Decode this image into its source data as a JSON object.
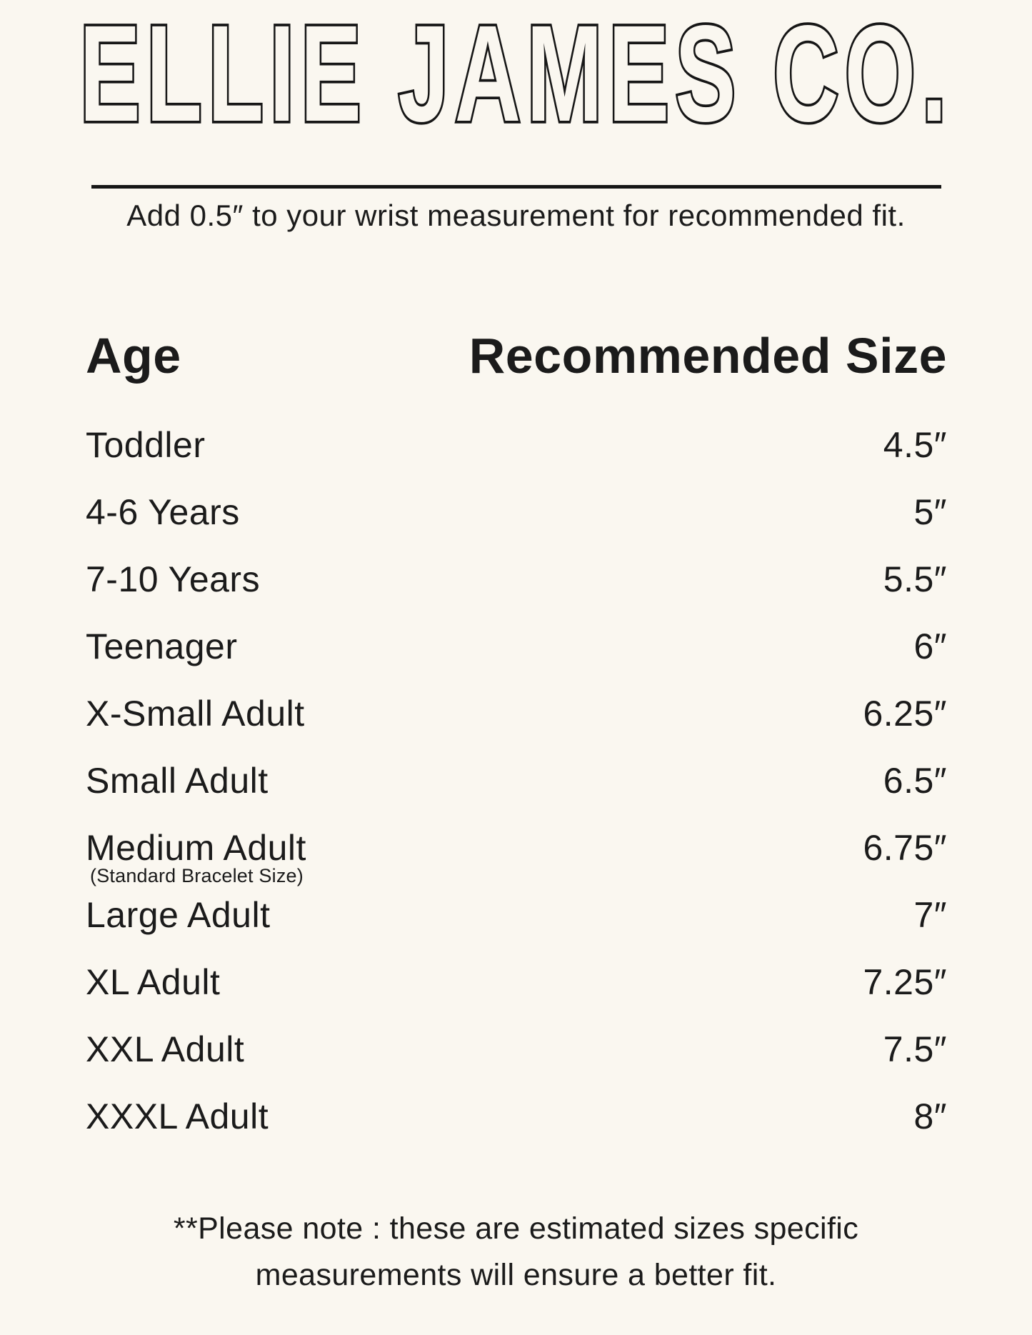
{
  "page": {
    "background_color": "#FAF7F0",
    "text_color": "#1b1b1b"
  },
  "brand": {
    "logo_text": "ELLIE JAMES CO."
  },
  "instruction": "Add 0.5″ to your wrist measurement for recommended fit.",
  "table": {
    "headers": {
      "age": "Age",
      "size": "Recommended Size"
    },
    "rows": [
      {
        "age": "Toddler",
        "size": "4.5″"
      },
      {
        "age": "4-6 Years",
        "size": "5″"
      },
      {
        "age": "7-10 Years",
        "size": "5.5″"
      },
      {
        "age": "Teenager",
        "size": "6″"
      },
      {
        "age": "X-Small Adult",
        "size": "6.25″"
      },
      {
        "age": "Small Adult",
        "size": "6.5″"
      },
      {
        "age": "Medium Adult",
        "note": "(Standard Bracelet Size)",
        "size": "6.75″"
      },
      {
        "age": "Large Adult",
        "size": "7″"
      },
      {
        "age": "XL Adult",
        "size": "7.25″"
      },
      {
        "age": "XXL Adult",
        "size": "7.5″"
      },
      {
        "age": "XXXL Adult",
        "size": "8″"
      }
    ]
  },
  "footer": {
    "line1": "**Please note : these are estimated sizes specific",
    "line2": "measurements will ensure a better fit."
  }
}
